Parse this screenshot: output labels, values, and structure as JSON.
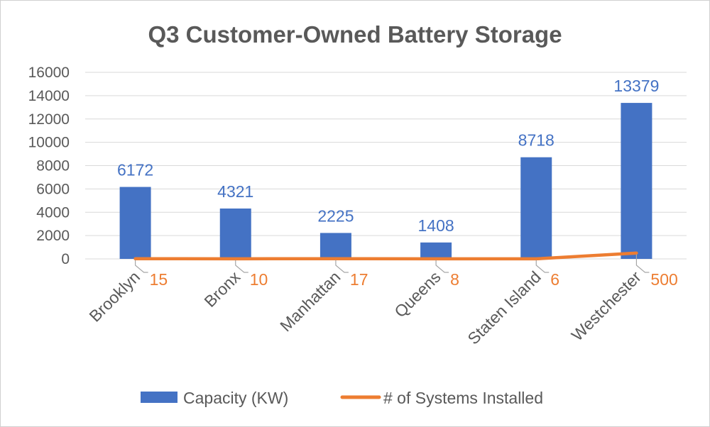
{
  "colors": {
    "bar": "#4472c4",
    "line": "#ed7d31",
    "grid": "#d9d9d9",
    "text": "#595959",
    "leader": "#a6a6a6"
  },
  "chart_data": {
    "type": "bar",
    "title": "Q3 Customer-Owned Battery Storage",
    "categories": [
      "Brooklyn",
      "Bronx",
      "Manhattan",
      "Queens",
      "Staten Island",
      "Westchester"
    ],
    "ylim": [
      0,
      16000
    ],
    "yticks": [
      0,
      2000,
      4000,
      6000,
      8000,
      10000,
      12000,
      14000,
      16000
    ],
    "grid": true,
    "legend_position": "bottom",
    "series": [
      {
        "name": "Capacity (KW)",
        "kind": "bar",
        "values": [
          6172,
          4321,
          2225,
          1408,
          8718,
          13379
        ]
      },
      {
        "name": "# of Systems Installed",
        "kind": "line",
        "values": [
          15,
          10,
          17,
          8,
          6,
          500
        ]
      }
    ]
  }
}
